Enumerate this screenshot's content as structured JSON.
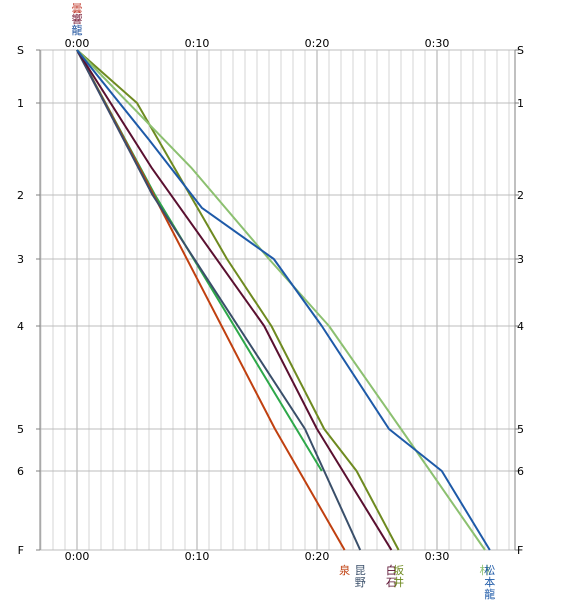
{
  "chart_data": {
    "type": "line",
    "title": "",
    "xlabel": "",
    "ylabel": "",
    "x_unit": "time (h:mm)",
    "xlim_minutes": [
      -3,
      36
    ],
    "x_ticks": [
      {
        "minutes": 0,
        "label": "0:00"
      },
      {
        "minutes": 10,
        "label": "0:10"
      },
      {
        "minutes": 20,
        "label": "0:20"
      },
      {
        "minutes": 30,
        "label": "0:30"
      }
    ],
    "x_minor_step_minutes": 1,
    "y_ticks": [
      {
        "pos": 0,
        "label": "S"
      },
      {
        "pos": 1,
        "label": "1"
      },
      {
        "pos": 2,
        "label": "2"
      },
      {
        "pos": 3,
        "label": "3"
      },
      {
        "pos": 4,
        "label": "4"
      },
      {
        "pos": 5,
        "label": "5"
      },
      {
        "pos": 6,
        "label": "6"
      },
      {
        "pos": 7,
        "label": "F"
      }
    ],
    "y_scale": "nonuniform-checkpoints",
    "grid": true,
    "top_labels": [
      {
        "text": "曇",
        "color": "#c0392b",
        "minutes": 0,
        "row": 0
      },
      {
        "text": "響",
        "color": "#7a1f3a",
        "minutes": 0,
        "row": 1
      },
      {
        "text": "龍",
        "color": "#1a4f9c",
        "minutes": 0,
        "row": 2
      }
    ],
    "series": [
      {
        "label": "",
        "color": "#9a5a9e",
        "points": [
          [
            0,
            0
          ],
          [
            6.3,
            2
          ]
        ]
      },
      {
        "label": "",
        "color": "#2ea84a",
        "points": [
          [
            0,
            0
          ],
          [
            6.5,
            2
          ],
          [
            20.4,
            6
          ]
        ]
      },
      {
        "label": "泉",
        "color": "#c04010",
        "points": [
          [
            0,
            0
          ],
          [
            5.6,
            1.8
          ],
          [
            16.5,
            5
          ],
          [
            22.3,
            7
          ]
        ]
      },
      {
        "label": "昆野",
        "color": "#3a4f6a",
        "points": [
          [
            0,
            0
          ],
          [
            6.3,
            2
          ],
          [
            19,
            5
          ],
          [
            23.6,
            7
          ]
        ]
      },
      {
        "label": "白石",
        "color": "#5a1030",
        "points": [
          [
            0,
            0
          ],
          [
            6.2,
            1.7
          ],
          [
            15.6,
            4
          ],
          [
            20,
            5
          ],
          [
            26.2,
            7
          ]
        ]
      },
      {
        "label": "坂井",
        "color": "#6e8a20",
        "points": [
          [
            0,
            0
          ],
          [
            5,
            1
          ],
          [
            12.5,
            3
          ],
          [
            16.2,
            4
          ],
          [
            20.6,
            5
          ],
          [
            23.3,
            6
          ],
          [
            26.8,
            7
          ]
        ]
      },
      {
        "label": "林",
        "color": "#8cc070",
        "points": [
          [
            0,
            0
          ],
          [
            9.5,
            1.7
          ],
          [
            16,
            3
          ],
          [
            21,
            4
          ],
          [
            27,
            5
          ],
          [
            34,
            7
          ]
        ]
      },
      {
        "label": "松本龍",
        "color": "#1e5aa8",
        "points": [
          [
            0,
            0
          ],
          [
            6,
            1.4
          ],
          [
            10.4,
            2.2
          ],
          [
            16.4,
            3
          ],
          [
            20.4,
            4
          ],
          [
            26,
            5
          ],
          [
            30.4,
            6
          ],
          [
            34.4,
            7
          ]
        ]
      }
    ]
  }
}
